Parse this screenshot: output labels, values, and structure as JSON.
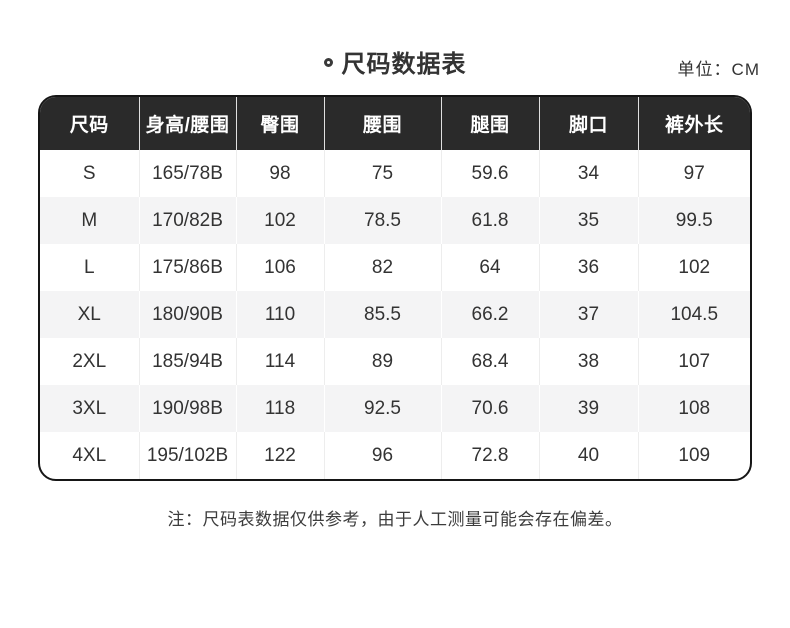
{
  "header": {
    "title": "尺码数据表",
    "unit_label": "单位：CM"
  },
  "footer": {
    "note": "注：尺码表数据仅供参考，由于人工测量可能会存在偏差。"
  },
  "colors": {
    "header_bg": "#2a2a2a",
    "header_text": "#ffffff",
    "row_alt_bg": "#f4f4f5",
    "body_text": "#333333",
    "table_border": "#161616"
  },
  "chart_data": {
    "type": "table",
    "title": "尺码数据表",
    "unit": "CM",
    "columns": [
      "尺码",
      "身高/腰围",
      "臀围",
      "腰围",
      "腿围",
      "脚口",
      "裤外长"
    ],
    "rows": [
      [
        "S",
        "165/78B",
        "98",
        "75",
        "59.6",
        "34",
        "97"
      ],
      [
        "M",
        "170/82B",
        "102",
        "78.5",
        "61.8",
        "35",
        "99.5"
      ],
      [
        "L",
        "175/86B",
        "106",
        "82",
        "64",
        "36",
        "102"
      ],
      [
        "XL",
        "180/90B",
        "110",
        "85.5",
        "66.2",
        "37",
        "104.5"
      ],
      [
        "2XL",
        "185/94B",
        "114",
        "89",
        "68.4",
        "38",
        "107"
      ],
      [
        "3XL",
        "190/98B",
        "118",
        "92.5",
        "70.6",
        "39",
        "108"
      ],
      [
        "4XL",
        "195/102B",
        "122",
        "96",
        "72.8",
        "40",
        "109"
      ]
    ]
  }
}
